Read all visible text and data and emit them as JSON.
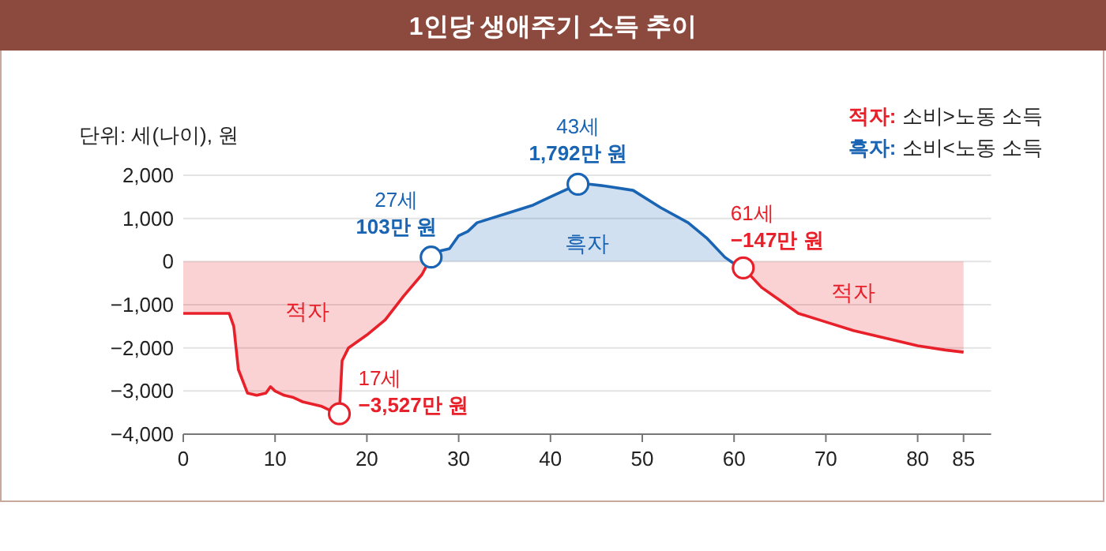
{
  "chart_data": {
    "type": "area",
    "title": "1인당 생애주기 소득 추이",
    "ylabel": "단위: 세(나이), 원",
    "series": [
      {
        "name": "적자",
        "color": "#e8202a",
        "x": [
          0,
          5,
          5.5,
          6,
          7,
          8,
          9,
          9.5,
          10,
          11,
          12,
          13,
          14,
          15,
          16,
          17,
          17.3,
          18,
          20,
          22,
          24,
          26,
          27
        ],
        "values": [
          -1200,
          -1200,
          -1500,
          -2500,
          -3050,
          -3100,
          -3050,
          -2900,
          -3000,
          -3100,
          -3150,
          -3250,
          -3300,
          -3350,
          -3450,
          -3527,
          -2300,
          -2000,
          -1700,
          -1350,
          -800,
          -300,
          103
        ]
      },
      {
        "name": "흑자",
        "color": "#1a64b4",
        "x": [
          27,
          28,
          29,
          30,
          31,
          32,
          35,
          38,
          40,
          43,
          44,
          46,
          49,
          52,
          55,
          57,
          59,
          60,
          61
        ],
        "values": [
          103,
          250,
          300,
          600,
          700,
          900,
          1100,
          1300,
          1500,
          1792,
          1800,
          1750,
          1650,
          1250,
          900,
          550,
          100,
          -50,
          -147
        ]
      },
      {
        "name": "적자",
        "color": "#e8202a",
        "x": [
          61,
          63,
          65,
          67,
          70,
          73,
          75,
          78,
          80,
          83,
          85
        ],
        "values": [
          -147,
          -600,
          -900,
          -1200,
          -1400,
          -1600,
          -1700,
          -1850,
          -1950,
          -2050,
          -2100
        ]
      }
    ],
    "xlim": [
      0,
      88
    ],
    "xticks": [
      0,
      10,
      20,
      30,
      40,
      50,
      60,
      70,
      80,
      85
    ],
    "ylim": [
      -4000,
      2000
    ],
    "yticks": [
      {
        "value": -4000,
        "label": "−4,000"
      },
      {
        "value": -3000,
        "label": "−3,000"
      },
      {
        "value": -2000,
        "label": "−2,000"
      },
      {
        "value": -1000,
        "label": "−1,000"
      },
      0,
      {
        "value": 1000,
        "label": "1,000"
      },
      {
        "value": 2000,
        "label": "2,000"
      }
    ],
    "grid": "y",
    "marker": "none",
    "annotations": [
      {
        "text": "27세\n103만 원",
        "x": 27,
        "y": 103
      },
      {
        "text": "43세\n1,792만 원",
        "x": 43,
        "y": 1792
      },
      {
        "text": "17세\n−3,527만 원",
        "x": 17,
        "y": -3527
      },
      {
        "text": "61세\n−147만 원",
        "x": 61,
        "y": -147
      },
      "적자: 소비>노동 소득",
      "흑자: 소비<노동 소득"
    ]
  }
}
